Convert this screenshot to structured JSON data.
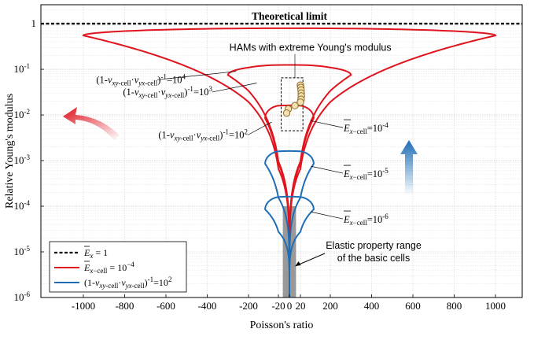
{
  "chart_data": {
    "type": "line",
    "title": "",
    "xlabel": "Poisson's ratio",
    "ylabel": "Relative Young's modulus",
    "xlim": [
      -1080,
      1080
    ],
    "ylim": [
      1e-06,
      2.6
    ],
    "yscale": "log",
    "grid": true,
    "legend_position": "bottom-left",
    "xticks": [
      "-1000",
      "-800",
      "-600",
      "-400",
      "-200",
      "-20",
      "0",
      "20",
      "200",
      "400",
      "600",
      "800",
      "1000"
    ],
    "xtick_values": [
      -1000,
      -800,
      -600,
      -400,
      -200,
      -20,
      0,
      20,
      200,
      400,
      600,
      800,
      1000
    ],
    "yticks": [
      1,
      0.1,
      0.01,
      0.001,
      0.0001,
      1e-05,
      1e-06
    ],
    "ytick_base": "10",
    "ytick_exponents": [
      "",
      "-1",
      "-2",
      "-3",
      "-4",
      "-5",
      "-6"
    ],
    "ytick_first_label": "1",
    "theoretical_limit": {
      "y": 1,
      "label": "Theoretical limit"
    },
    "red_loops": [
      {
        "label_base": "(1-",
        "label_factor": "10",
        "label_exp": "4",
        "nu_max": 1000,
        "y_peak": 0.55,
        "apex_y": 1e-06
      },
      {
        "label_factor": "10",
        "label_exp": "3",
        "nu_max": 300,
        "y_peak": 0.075,
        "apex_y": 1e-06
      },
      {
        "label_factor": "10",
        "label_exp": "2",
        "nu_max": 100,
        "y_peak": 0.0085,
        "apex_y": 1e-06
      }
    ],
    "blue_loops": [
      {
        "label_value": "10",
        "label_exp": "-5",
        "nu_max": 100,
        "y_peak": 0.00085,
        "apex_y": 1e-06
      },
      {
        "label_value": "10",
        "label_exp": "-6",
        "nu_max": 100,
        "y_peak": 8.5e-05,
        "apex_y": 1e-06
      }
    ],
    "red_contour_label": {
      "value": "10",
      "exp": "-4"
    },
    "hams_points": [
      {
        "x": 20,
        "y": 0.045
      },
      {
        "x": 22,
        "y": 0.04
      },
      {
        "x": 24,
        "y": 0.035
      },
      {
        "x": 25,
        "y": 0.03
      },
      {
        "x": 25,
        "y": 0.026
      },
      {
        "x": 24,
        "y": 0.022
      },
      {
        "x": 20,
        "y": 0.019
      },
      {
        "x": 10,
        "y": 0.016
      },
      {
        "x": -2,
        "y": 0.0135
      },
      {
        "x": -5,
        "y": 0.011
      }
    ],
    "hams_label": "HAMs with extreme Young's modulus",
    "elastic_range_label_line1": "Elastic property range",
    "elastic_range_label_line2": "of the basic cells",
    "elastic_range": {
      "x_min": -12,
      "x_max": 12,
      "y_min": 1e-06,
      "y_max": 0.0001
    },
    "legend": [
      {
        "label": "E_x = 1",
        "style": "dashed",
        "color": "#000000"
      },
      {
        "label": "E_x-cell = 10^-4",
        "style": "solid",
        "color": "#e0141e"
      },
      {
        "label": "(1-v_xy-cell v_yx-cell)^-1 = 10^2",
        "style": "solid",
        "color": "#1f6db5"
      }
    ],
    "colors": {
      "red": "#e0141e",
      "blue": "#1f6db5",
      "gray": "#999999",
      "point_fill": "#f5dfb0",
      "point_stroke": "#8a6c2c"
    }
  }
}
